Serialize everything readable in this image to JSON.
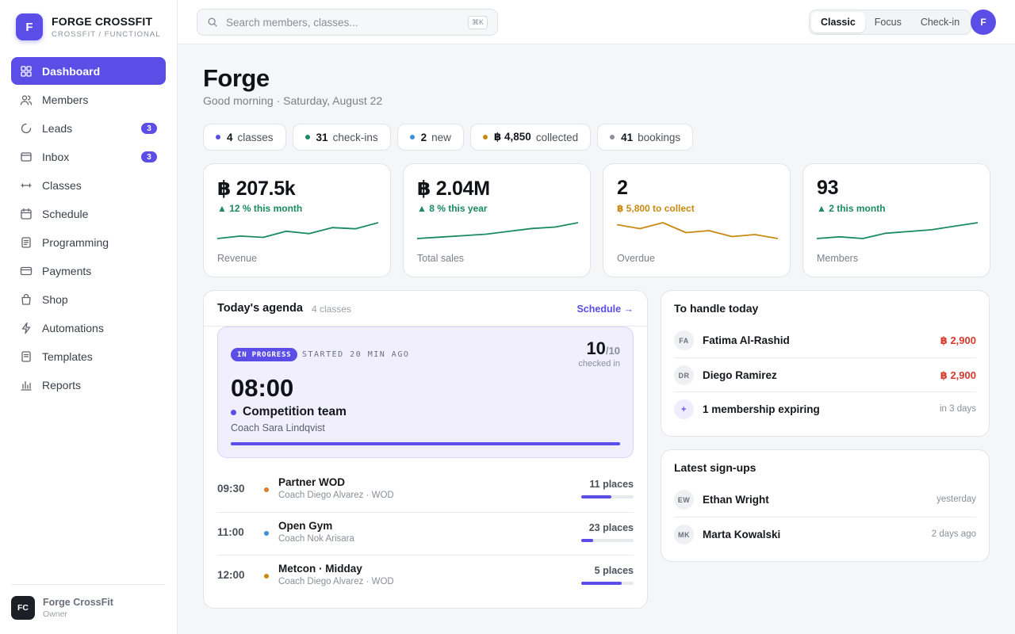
{
  "brand": {
    "initial": "F",
    "name": "FORGE CROSSFIT",
    "sub": "CROSSFIT / FUNCTIONAL"
  },
  "nav": [
    {
      "label": "Dashboard",
      "icon": "grid-icon",
      "active": true,
      "badge": ""
    },
    {
      "label": "Members",
      "icon": "users-icon",
      "badge": ""
    },
    {
      "label": "Leads",
      "icon": "loader-icon",
      "badge": "3"
    },
    {
      "label": "Inbox",
      "icon": "inbox-icon",
      "badge": "3"
    },
    {
      "label": "Classes",
      "icon": "dumbbell-icon",
      "badge": ""
    },
    {
      "label": "Schedule",
      "icon": "calendar-icon",
      "badge": ""
    },
    {
      "label": "Programming",
      "icon": "document-icon",
      "badge": ""
    },
    {
      "label": "Payments",
      "icon": "card-icon",
      "badge": ""
    },
    {
      "label": "Shop",
      "icon": "bag-icon",
      "badge": ""
    },
    {
      "label": "Automations",
      "icon": "bolt-icon",
      "badge": ""
    },
    {
      "label": "Templates",
      "icon": "template-icon",
      "badge": ""
    },
    {
      "label": "Reports",
      "icon": "bar-chart-icon",
      "badge": ""
    }
  ],
  "footer": {
    "initials": "FC",
    "name": "Forge CrossFit",
    "role": "Owner"
  },
  "topbar": {
    "search_placeholder": "Search members, classes...",
    "shortcut": "⌘K",
    "modes": [
      "Classic",
      "Focus",
      "Check-in"
    ],
    "active_mode": "Classic",
    "avatar": "F"
  },
  "page": {
    "title": "Forge",
    "greeting": "Good morning · Saturday, August 22"
  },
  "pills": [
    {
      "value": "4",
      "label": "classes",
      "color": "#5b4ee6"
    },
    {
      "value": "31",
      "label": "check-ins",
      "color": "#1a8a5f"
    },
    {
      "value": "2",
      "label": "new",
      "color": "#3b8fd9"
    },
    {
      "value": "฿ 4,850",
      "label": "collected",
      "color": "#c98a12"
    },
    {
      "value": "41",
      "label": "bookings",
      "color": "#8a8f99"
    }
  ],
  "stats": [
    {
      "value": "฿ 207.5k",
      "delta": "▲ 12 % this month",
      "label": "Revenue",
      "color": "#1a8a5f",
      "trend": [
        3,
        5,
        4,
        9,
        7,
        12,
        11,
        16
      ]
    },
    {
      "value": "฿ 2.04M",
      "delta": "▲ 8 % this year",
      "label": "Total sales",
      "color": "#1a8a5f",
      "trend": [
        3,
        4,
        5,
        6,
        8,
        10,
        11,
        14
      ]
    },
    {
      "value": "2",
      "delta": "฿ 5,800 to collect",
      "label": "Overdue",
      "color": "#c98a12",
      "trend": [
        12,
        10,
        13,
        8,
        9,
        6,
        7,
        5
      ]
    },
    {
      "value": "93",
      "delta": "▲ 2 this month",
      "label": "Members",
      "color": "#1a8a5f",
      "trend": [
        5,
        6,
        5,
        8,
        9,
        10,
        12,
        14
      ]
    }
  ],
  "agenda": {
    "title": "Today's agenda",
    "count": "4 classes",
    "link": "Schedule →",
    "current": {
      "badge": "IN PROGRESS",
      "started": "STARTED 20 MIN AGO",
      "checked": "10",
      "capacity": "/10",
      "checked_label": "checked in",
      "time": "08:00",
      "name": "Competition team",
      "coach": "Coach Sara Lindqvist",
      "progress": 1.0
    },
    "classes": [
      {
        "time": "09:30",
        "name": "Partner WOD",
        "coach": "Coach Diego Alvarez · WOD",
        "places": "11 places",
        "dot": "#e07a2a",
        "fill": 0.58
      },
      {
        "time": "11:00",
        "name": "Open Gym",
        "coach": "Coach Nok Arisara",
        "places": "23 places",
        "dot": "#3b8fd9",
        "fill": 0.23
      },
      {
        "time": "12:00",
        "name": "Metcon · Midday",
        "coach": "Coach Diego Alvarez · WOD",
        "places": "5 places",
        "dot": "#c98a12",
        "fill": 0.77
      }
    ]
  },
  "handle": {
    "title": "To handle today",
    "rows": [
      {
        "initials": "FA",
        "name": "Fatima Al-Rashid",
        "value": "฿ 2,900"
      },
      {
        "initials": "DR",
        "name": "Diego Ramirez",
        "value": "฿ 2,900"
      },
      {
        "initials": "+",
        "name": "1 membership expiring",
        "meta": "in 3 days"
      }
    ]
  },
  "signups": {
    "title": "Latest sign-ups",
    "rows": [
      {
        "initials": "EW",
        "name": "Ethan Wright",
        "meta": "yesterday"
      },
      {
        "initials": "MK",
        "name": "Marta Kowalski",
        "meta": "2 days ago"
      }
    ]
  }
}
